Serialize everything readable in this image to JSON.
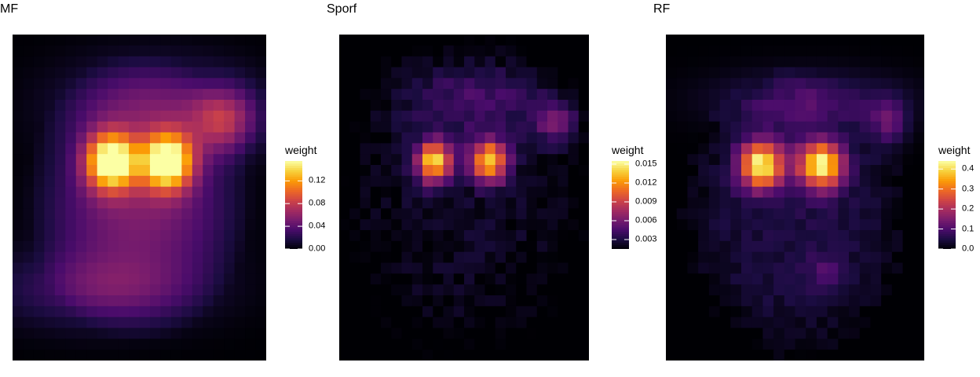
{
  "colors": {
    "colormap": "inferno",
    "colormap_stops": [
      "#000004",
      "#1b0c41",
      "#4a0c6b",
      "#781c6d",
      "#a52c60",
      "#cf4446",
      "#ed6925",
      "#fb9b06",
      "#f7d13d",
      "#fcffa4"
    ]
  },
  "chart_data": [
    {
      "type": "heatmap",
      "title": "MF",
      "legend": {
        "title": "weight",
        "ticks": [
          "0.00",
          "0.04",
          "0.08",
          "0.12"
        ],
        "range": [
          0,
          0.155
        ],
        "placement": "right"
      },
      "grid": false,
      "resolution": [
        24,
        30
      ],
      "blobs": [
        {
          "x": 0.39,
          "y": 0.39,
          "sx": 0.07,
          "sy": 0.06,
          "amp": 0.155
        },
        {
          "x": 0.61,
          "y": 0.39,
          "sx": 0.07,
          "sy": 0.06,
          "amp": 0.155
        },
        {
          "x": 0.84,
          "y": 0.26,
          "sx": 0.09,
          "sy": 0.07,
          "amp": 0.06
        },
        {
          "x": 0.55,
          "y": 0.22,
          "sx": 0.25,
          "sy": 0.1,
          "amp": 0.035
        },
        {
          "x": 0.5,
          "y": 0.55,
          "sx": 0.22,
          "sy": 0.12,
          "amp": 0.03
        },
        {
          "x": 0.35,
          "y": 0.78,
          "sx": 0.28,
          "sy": 0.08,
          "amp": 0.035
        }
      ],
      "body": {
        "amp": 0.022,
        "cx": 0.5,
        "cy": 0.5,
        "rx": 0.45,
        "ry": 0.45
      },
      "noise": 0.0
    },
    {
      "type": "heatmap",
      "title": "Sporf",
      "legend": {
        "title": "weight",
        "ticks": [
          "0.003",
          "0.006",
          "0.009",
          "0.012",
          "0.015"
        ],
        "range": [
          0.0015,
          0.0155
        ],
        "placement": "right"
      },
      "grid": false,
      "resolution": [
        24,
        30
      ],
      "blobs": [
        {
          "x": 0.38,
          "y": 0.39,
          "sx": 0.05,
          "sy": 0.045,
          "amp": 0.012
        },
        {
          "x": 0.6,
          "y": 0.39,
          "sx": 0.05,
          "sy": 0.045,
          "amp": 0.012
        },
        {
          "x": 0.87,
          "y": 0.27,
          "sx": 0.06,
          "sy": 0.05,
          "amp": 0.004
        },
        {
          "x": 0.55,
          "y": 0.2,
          "sx": 0.22,
          "sy": 0.08,
          "amp": 0.0025
        }
      ],
      "body": {
        "amp": 0.002,
        "cx": 0.5,
        "cy": 0.5,
        "rx": 0.6,
        "ry": 0.6
      },
      "noise": 0.0013
    },
    {
      "type": "heatmap",
      "title": "RF",
      "legend": {
        "title": "weight",
        "ticks": [
          "0.0",
          "0.1",
          "0.2",
          "0.3",
          "0.4"
        ],
        "range": [
          0,
          0.44
        ],
        "placement": "right"
      },
      "grid": false,
      "resolution": [
        24,
        30
      ],
      "blobs": [
        {
          "x": 0.37,
          "y": 0.4,
          "sx": 0.06,
          "sy": 0.05,
          "amp": 0.4
        },
        {
          "x": 0.6,
          "y": 0.4,
          "sx": 0.06,
          "sy": 0.05,
          "amp": 0.4
        },
        {
          "x": 0.86,
          "y": 0.27,
          "sx": 0.05,
          "sy": 0.05,
          "amp": 0.12
        },
        {
          "x": 0.55,
          "y": 0.2,
          "sx": 0.25,
          "sy": 0.06,
          "amp": 0.08
        },
        {
          "x": 0.62,
          "y": 0.73,
          "sx": 0.05,
          "sy": 0.04,
          "amp": 0.06
        }
      ],
      "body": {
        "amp": 0.045,
        "cx": 0.5,
        "cy": 0.55,
        "rx": 0.42,
        "ry": 0.42
      },
      "noise": 0.03
    }
  ]
}
